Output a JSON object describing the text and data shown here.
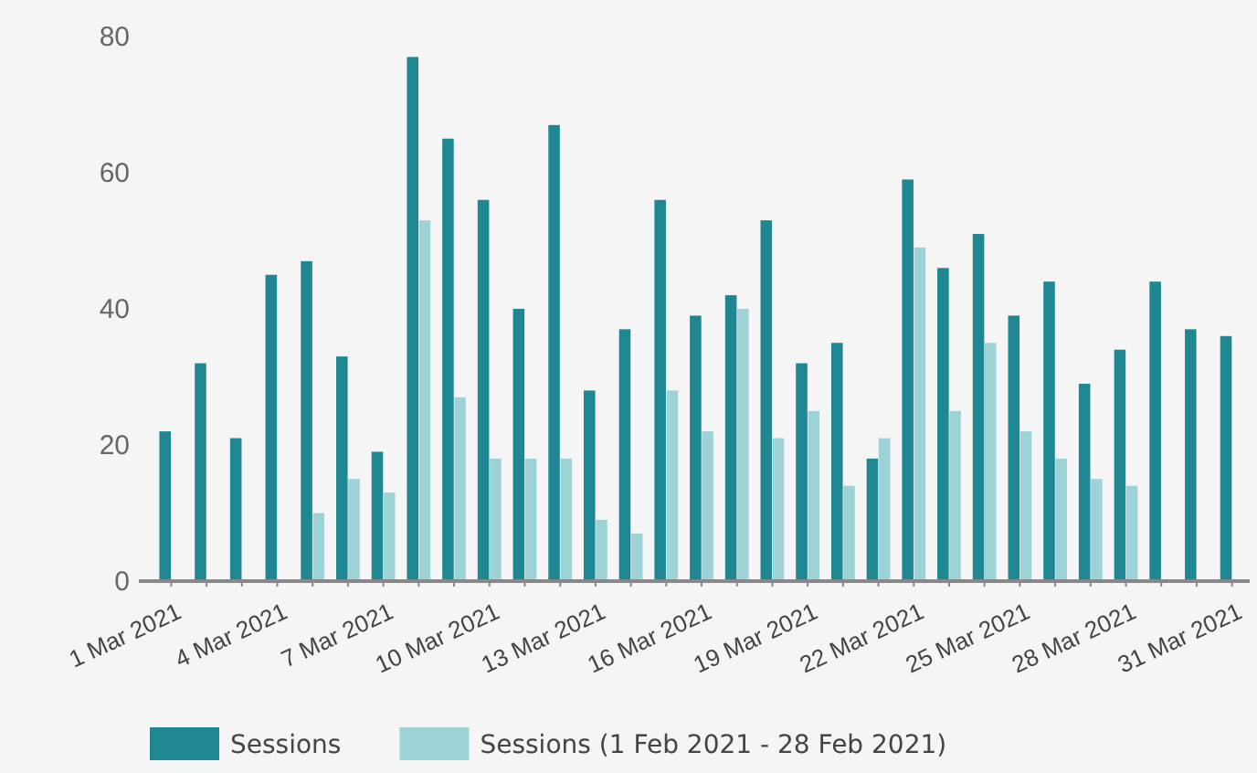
{
  "chart_data": {
    "type": "bar",
    "categories": [
      "1 Mar 2021",
      null,
      null,
      "4 Mar 2021",
      null,
      null,
      "7 Mar 2021",
      null,
      null,
      "10 Mar 2021",
      null,
      null,
      "13 Mar 2021",
      null,
      null,
      "16 Mar 2021",
      null,
      null,
      "19 Mar 2021",
      null,
      null,
      "22 Mar 2021",
      null,
      null,
      "25 Mar 2021",
      null,
      null,
      "28 Mar 2021",
      null,
      null,
      "31 Mar 2021"
    ],
    "series": [
      {
        "name": "Sessions",
        "color": "#1e8792",
        "values": [
          22,
          32,
          21,
          45,
          47,
          33,
          19,
          77,
          65,
          56,
          40,
          67,
          28,
          37,
          56,
          39,
          42,
          53,
          32,
          35,
          18,
          59,
          46,
          51,
          39,
          44,
          29,
          34,
          44,
          37,
          36
        ]
      },
      {
        "name": "Sessions (1 Feb 2021 - 28 Feb 2021)",
        "color": "#9dd2d6",
        "values": [
          null,
          null,
          null,
          null,
          10,
          15,
          13,
          53,
          27,
          18,
          18,
          18,
          9,
          7,
          28,
          22,
          40,
          21,
          25,
          14,
          21,
          49,
          25,
          35,
          22,
          18,
          15,
          14,
          null,
          null,
          null
        ]
      }
    ],
    "ylim": [
      0,
      80
    ],
    "yticks": [
      0,
      20,
      40,
      60,
      80
    ],
    "grid": false,
    "legend": "bottom"
  }
}
